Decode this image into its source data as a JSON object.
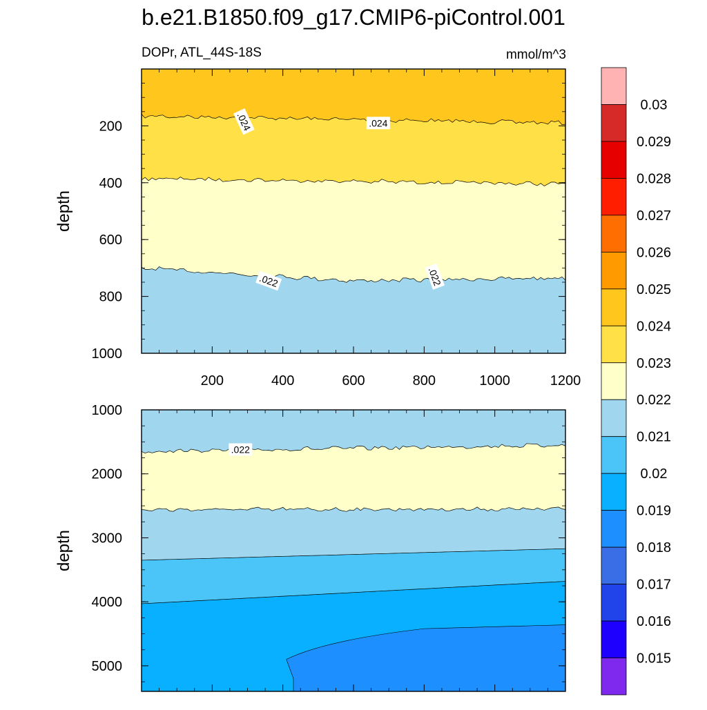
{
  "chart_data": {
    "type": "contour",
    "title": "b.e21.B1850.f09_g17.CMIP6-piControl.001",
    "left_label": "DOPr, ATL_44S-18S",
    "units": "mmol/m^3",
    "xlabel": "",
    "ylabel": "depth",
    "xlim": [
      0,
      1200
    ],
    "x_ticks": [
      200,
      400,
      600,
      800,
      1000,
      1200
    ],
    "x_tick_labels": [
      "200",
      "400",
      "600",
      "800",
      "1000",
      "1200"
    ],
    "panels": [
      {
        "name": "upper",
        "ylim": [
          0,
          1000
        ],
        "y_ticks": [
          200,
          400,
          600,
          800,
          1000
        ],
        "y_tick_labels": [
          "200",
          "400",
          "600",
          "800",
          "1000"
        ],
        "contour_boundaries": [
          {
            "level": 0.024,
            "depths": [
              165,
              190
            ]
          },
          {
            "level": 0.023,
            "depths": [
              385,
              405
            ]
          },
          {
            "level": 0.022,
            "depths": [
              700,
              745,
              735
            ]
          }
        ],
        "bands": [
          "#FFC61E",
          "#FFE046",
          "#FFFFCA",
          "#A0D6EE"
        ],
        "contour_labels": [
          {
            "text": ".024",
            "x": 290,
            "depth": 185,
            "angle": 65
          },
          {
            "text": ".024",
            "x": 670,
            "depth": 190,
            "angle": 0
          },
          {
            "text": ".022",
            "x": 360,
            "depth": 745,
            "angle": 20
          },
          {
            "text": ".022",
            "x": 830,
            "depth": 730,
            "angle": 70
          }
        ]
      },
      {
        "name": "lower",
        "ylim": [
          1000,
          5400
        ],
        "y_ticks": [
          1000,
          2000,
          3000,
          4000,
          5000
        ],
        "y_tick_labels": [
          "1000",
          "2000",
          "3000",
          "4000",
          "5000"
        ],
        "contour_boundaries": [
          {
            "level": 0.022,
            "depths": [
              1650,
              1550
            ]
          },
          {
            "level": 0.022,
            "depths": [
              2560,
              2550
            ]
          },
          {
            "level": 0.021,
            "depths": [
              3350,
              3170
            ]
          },
          {
            "level": 0.02,
            "depths": [
              4030,
              3680
            ]
          },
          {
            "level": 0.019,
            "depths": [
              4360,
              4900
            ]
          }
        ],
        "bands": [
          "#A0D6EE",
          "#FFFFCA",
          "#A0D6EE",
          "#4BC4F7",
          "#08B0FF",
          "#1E8FFF"
        ],
        "contour_labels": [
          {
            "text": ".022",
            "x": 280,
            "depth": 1620,
            "angle": 0
          }
        ]
      }
    ],
    "colorbar": {
      "levels": [
        "0.015",
        "0.016",
        "0.017",
        "0.018",
        "0.019",
        "0.02",
        "0.021",
        "0.022",
        "0.023",
        "0.024",
        "0.025",
        "0.026",
        "0.027",
        "0.028",
        "0.029",
        "0.03"
      ],
      "colors": [
        "#FFB3B3",
        "#D62A28",
        "#E60000",
        "#FF1E00",
        "#FF6E00",
        "#FF9A00",
        "#FFC61E",
        "#FFE046",
        "#FFFFCA",
        "#A0D6EE",
        "#4BC4F7",
        "#08B0FF",
        "#1E8FFF",
        "#3A6EE6",
        "#2143EA",
        "#1E00FF",
        "#7F28EE"
      ]
    }
  }
}
